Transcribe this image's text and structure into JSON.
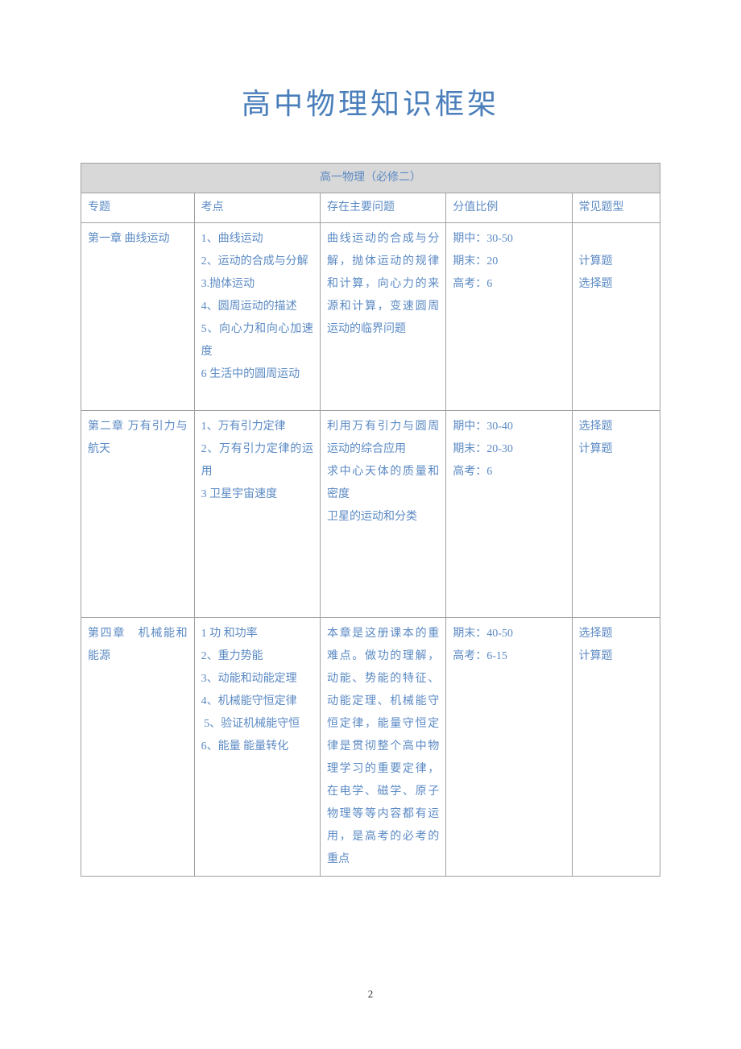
{
  "page": {
    "title": "高中物理知识框架",
    "page_number": "2"
  },
  "colors": {
    "title_color": "#4a7ebb",
    "text_color": "#5b8ac4",
    "header_bg": "#d8d8d8",
    "border_color": "#a0a0a0",
    "page_bg": "#ffffff"
  },
  "table": {
    "header": "高一物理（必修二）",
    "columns": [
      "专题",
      "考点",
      "存在主要问题",
      "分值比例",
      "常见题型"
    ],
    "rows": [
      {
        "topic": "第一章 曲线运动",
        "points": "1、曲线运动\n2、运动的合成与分解\n3.抛体运动\n4、圆周运动的描述\n5、向心力和向心加速度\n6 生活中的圆周运动",
        "issues": "曲线运动的合成与分解，抛体运动的规律和计算，向心力的来源和计算，变速圆周运动的临界问题",
        "score": "期中：30-50\n期末：20\n高考：6",
        "types": "\n计算题\n选择题"
      },
      {
        "topic": "第二章 万有引力与航天",
        "points": "1、万有引力定律\n2、万有引力定律的运用\n3 卫星宇宙速度",
        "issues": "利用万有引力与圆周运动的综合应用\n求中心天体的质量和密度\n卫星的运动和分类",
        "score": "期中：30-40\n期末：20-30\n高考：6",
        "types": "选择题\n计算题"
      },
      {
        "topic": "第四章　机械能和能源",
        "points": "1 功 和功率\n2、重力势能\n3、动能和动能定理\n4、机械能守恒定律\n 5、验证机械能守恒\n6、能量 能量转化",
        "issues": "本章是这册课本的重难点。做功的理解，动能、势能的特征、动能定理、机械能守恒定律，能量守恒定律是贯彻整个高中物理学习的重要定律，在电学、磁学、原子物理等等内容都有运用，是高考的必考的重点",
        "score": "期末：40-50\n高考：6-15",
        "types": "选择题\n计算题"
      }
    ]
  }
}
